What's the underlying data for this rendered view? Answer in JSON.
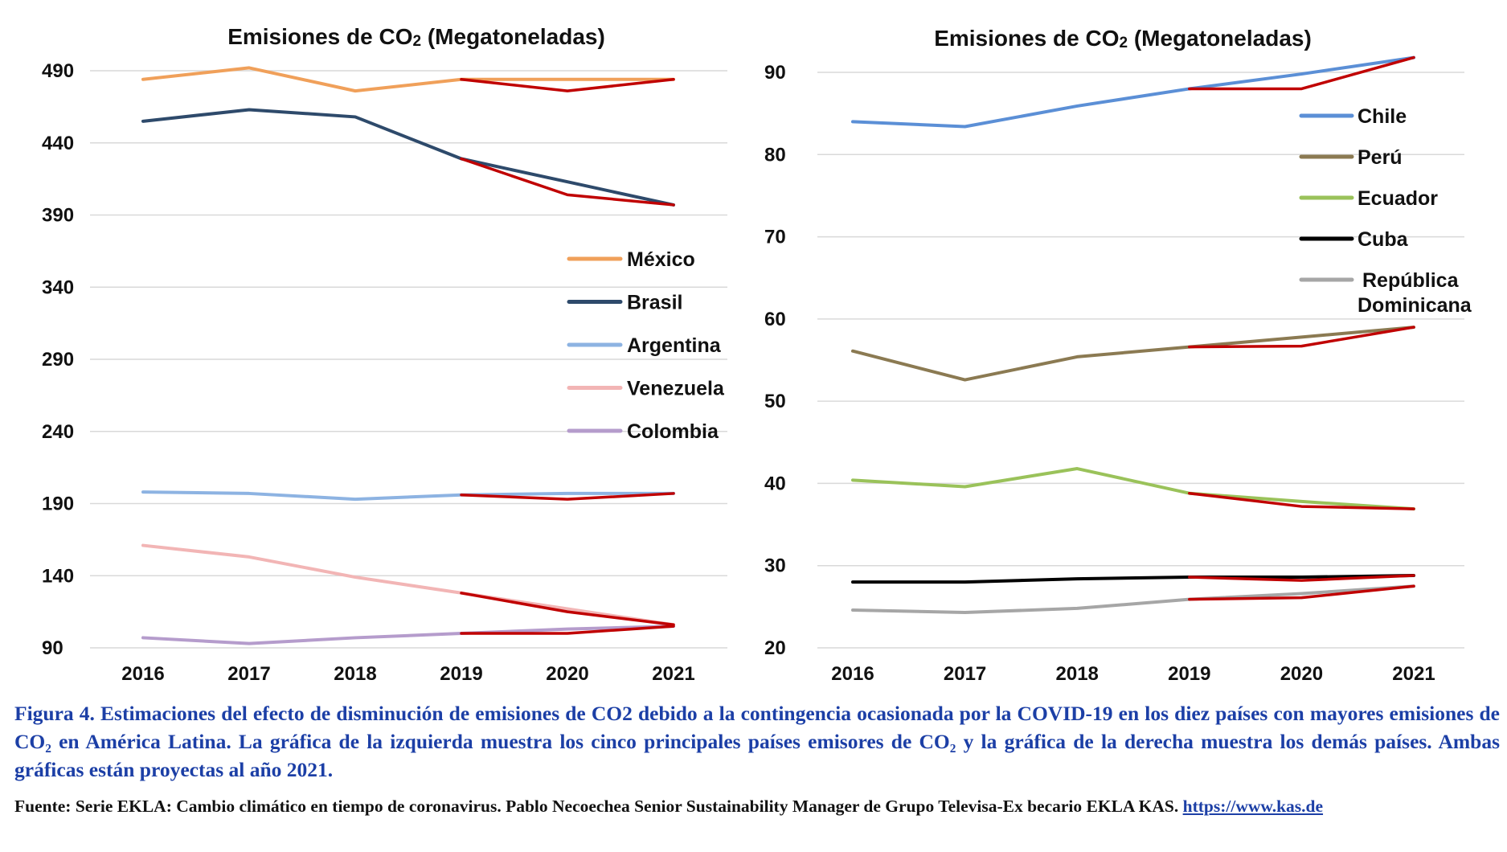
{
  "chart_data": [
    {
      "type": "line",
      "title": "Emisiones de CO",
      "title_sub": "2",
      "title_suffix": " (Megatoneladas)",
      "x": [
        "2016",
        "2017",
        "2018",
        "2019",
        "2020",
        "2021"
      ],
      "yticks": [
        "490",
        "440",
        "390",
        "340",
        "290",
        "240",
        "190",
        "140",
        "90"
      ],
      "ylim": [
        90,
        490
      ],
      "legend_position": "right",
      "covid_color": "#c00000",
      "series": [
        {
          "name": "México",
          "color": "#f0a05a",
          "values": [
            484,
            492,
            476,
            484,
            484,
            484
          ],
          "covid_values": [
            null,
            null,
            null,
            484,
            476,
            484
          ]
        },
        {
          "name": "Brasil",
          "color": "#2e4a6b",
          "values": [
            455,
            463,
            458,
            429,
            413,
            397
          ],
          "covid_values": [
            null,
            null,
            null,
            429,
            404,
            397
          ]
        },
        {
          "name": "Argentina",
          "color": "#8db3e2",
          "values": [
            198,
            197,
            193,
            196,
            197,
            197
          ],
          "covid_values": [
            null,
            null,
            null,
            196,
            193,
            197
          ]
        },
        {
          "name": "Venezuela",
          "color": "#f2b5b5",
          "values": [
            161,
            153,
            139,
            128,
            117,
            106
          ],
          "covid_values": [
            null,
            null,
            null,
            128,
            115,
            106
          ]
        },
        {
          "name": "Colombia",
          "color": "#b59ccc",
          "values": [
            97,
            93,
            97,
            100,
            103,
            105
          ],
          "covid_values": [
            null,
            null,
            null,
            100,
            100,
            105
          ]
        }
      ]
    },
    {
      "type": "line",
      "title": "Emisiones de CO",
      "title_sub": "2",
      "title_suffix": " (Megatoneladas)",
      "x": [
        "2016",
        "2017",
        "2018",
        "2019",
        "2020",
        "2021"
      ],
      "yticks": [
        "90",
        "80",
        "70",
        "60",
        "50",
        "40",
        "30",
        "20"
      ],
      "ylim": [
        20,
        90
      ],
      "legend_position": "top-right",
      "covid_color": "#c00000",
      "series": [
        {
          "name": "Chile",
          "color": "#5b8fd6",
          "values": [
            84,
            83.4,
            85.9,
            88.0,
            89.8,
            91.8
          ],
          "covid_values": [
            null,
            null,
            null,
            88.0,
            88.0,
            91.8
          ]
        },
        {
          "name": "Perú",
          "color": "#8b7a52",
          "values": [
            56.1,
            52.6,
            55.4,
            56.6,
            57.8,
            59.0
          ],
          "covid_values": [
            null,
            null,
            null,
            56.6,
            56.7,
            59.0
          ]
        },
        {
          "name": "Ecuador",
          "color": "#9ac25a",
          "values": [
            40.4,
            39.6,
            41.8,
            38.8,
            37.8,
            36.9
          ],
          "covid_values": [
            null,
            null,
            null,
            38.8,
            37.2,
            36.9
          ]
        },
        {
          "name": "Cuba",
          "color": "#000000",
          "values": [
            28.0,
            28.0,
            28.4,
            28.6,
            28.6,
            28.8
          ],
          "covid_values": [
            null,
            null,
            null,
            28.6,
            28.2,
            28.8
          ]
        },
        {
          "name": "República Dominicana",
          "name_lines": [
            "República",
            "Dominicana"
          ],
          "color": "#a6a6a6",
          "values": [
            24.6,
            24.3,
            24.8,
            25.9,
            26.6,
            27.5
          ],
          "covid_values": [
            null,
            null,
            null,
            25.9,
            26.1,
            27.5
          ]
        }
      ]
    }
  ],
  "caption": {
    "text": "Figura 4. Estimaciones del efecto de disminución de emisiones de CO2 debido a la contingencia ocasionada por la COVID-19 en los diez países con mayores emisiones de CO₂ en América Latina. La gráfica de la izquierda muestra los cinco principales países emisores de CO₂ y la gráfica de la derecha muestra los demás países. Ambas gráficas están proyectas al año 2021."
  },
  "source": {
    "text": "Fuente: Serie EKLA: Cambio climático en tiempo de coronavirus. Pablo Necoechea Senior Sustainability Manager de Grupo Televisa-Ex becario EKLA KAS.",
    "link": "https://www.kas.de"
  }
}
